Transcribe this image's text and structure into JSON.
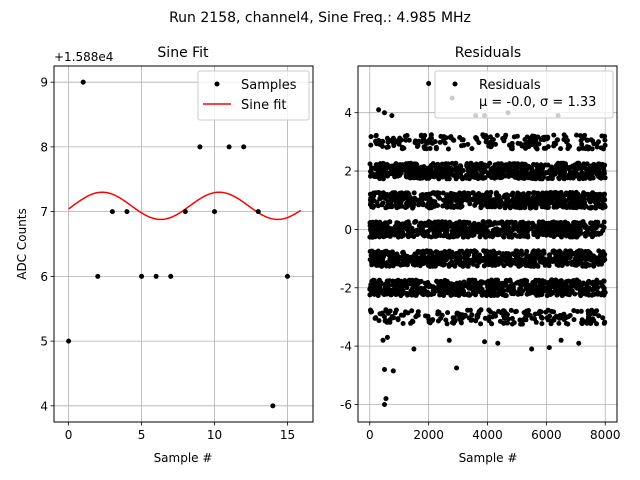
{
  "suptitle": "Run 2158, channel4, Sine Freq.: 4.985 MHz",
  "chart_data": [
    {
      "type": "line",
      "title": "Sine Fit",
      "xlabel": "Sample #",
      "ylabel": "ADC Counts",
      "offset_label": "+1.588e4",
      "xlim": [
        -1,
        16.75
      ],
      "ylim": [
        3.75,
        9.25
      ],
      "xticks": [
        0,
        5,
        10,
        15
      ],
      "yticks": [
        4,
        5,
        6,
        7,
        8,
        9
      ],
      "grid": true,
      "legend_position": "top-right",
      "series": [
        {
          "name": "Samples",
          "style": "markers",
          "color": "#000000",
          "x": [
            0,
            1,
            2,
            3,
            4,
            5,
            6,
            7,
            8,
            9,
            10,
            11,
            12,
            13,
            14,
            15
          ],
          "y": [
            5,
            9,
            6,
            7,
            7,
            6,
            6,
            6,
            7,
            8,
            7,
            8,
            8,
            7,
            4,
            6
          ]
        },
        {
          "name": "Sine fit",
          "style": "line",
          "color": "#ff0000",
          "x_range": [
            0,
            15.9
          ],
          "mean": 7.09,
          "amplitude": 0.21,
          "period_samples": 8.02,
          "peak_x": 2.3
        }
      ]
    },
    {
      "type": "scatter",
      "title": "Residuals",
      "xlabel": "Sample #",
      "ylabel": "",
      "xlim": [
        -400,
        8400
      ],
      "ylim": [
        -6.6,
        5.6
      ],
      "xticks": [
        0,
        2000,
        4000,
        6000,
        8000
      ],
      "yticks": [
        -6,
        -4,
        -2,
        0,
        2,
        4
      ],
      "grid": true,
      "legend_position": "top-right",
      "legend_entries": [
        "Residuals",
        "μ = -0.0, σ = 1.33"
      ],
      "series": [
        {
          "name": "Residuals",
          "color": "#000000",
          "n_points": 8000,
          "dense_bands": [
            -2,
            -1,
            0,
            1,
            2
          ],
          "sparse_bands": [
            -3,
            3
          ],
          "outliers": [
            {
              "x": 2000,
              "y": 5.0
            },
            {
              "x": 2800,
              "y": 4.5
            },
            {
              "x": 3600,
              "y": 3.9
            },
            {
              "x": 4700,
              "y": 4.0
            },
            {
              "x": 6400,
              "y": 3.9
            },
            {
              "x": 300,
              "y": 4.1
            },
            {
              "x": 500,
              "y": 4.0
            },
            {
              "x": 750,
              "y": 3.9
            },
            {
              "x": 3900,
              "y": 3.9
            },
            {
              "x": 500,
              "y": -6.0
            },
            {
              "x": 550,
              "y": -5.8
            },
            {
              "x": 500,
              "y": -4.8
            },
            {
              "x": 800,
              "y": -4.85
            },
            {
              "x": 2950,
              "y": -4.75
            },
            {
              "x": 1500,
              "y": -4.1
            },
            {
              "x": 5500,
              "y": -4.1
            },
            {
              "x": 6100,
              "y": -4.05
            },
            {
              "x": 7100,
              "y": -3.9
            },
            {
              "x": 450,
              "y": -3.8
            },
            {
              "x": 600,
              "y": -3.7
            },
            {
              "x": 2700,
              "y": -3.8
            },
            {
              "x": 3900,
              "y": -3.85
            },
            {
              "x": 4350,
              "y": -3.9
            },
            {
              "x": 6500,
              "y": -3.8
            }
          ]
        }
      ]
    }
  ]
}
